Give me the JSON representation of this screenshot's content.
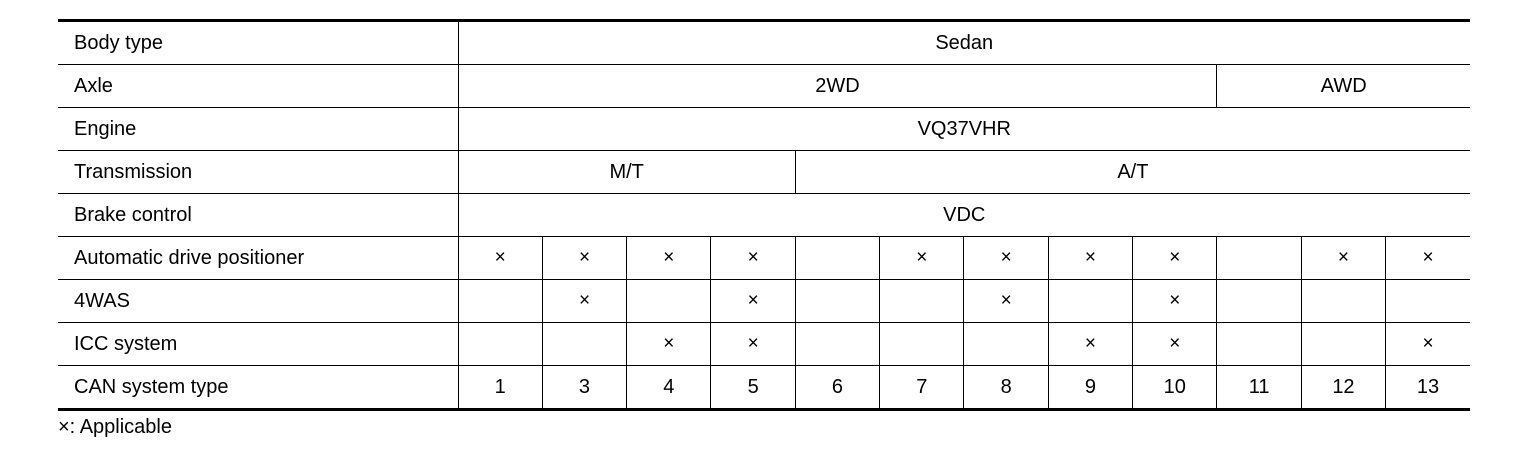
{
  "table": {
    "rows": [
      {
        "label": "Body type",
        "cells": [
          {
            "text": "Sedan",
            "span": 12
          }
        ]
      },
      {
        "label": "Axle",
        "cells": [
          {
            "text": "2WD",
            "span": 9
          },
          {
            "text": "AWD",
            "span": 3
          }
        ]
      },
      {
        "label": "Engine",
        "cells": [
          {
            "text": "VQ37VHR",
            "span": 12
          }
        ]
      },
      {
        "label": "Transmission",
        "cells": [
          {
            "text": "M/T",
            "span": 4
          },
          {
            "text": "A/T",
            "span": 8
          }
        ]
      },
      {
        "label": "Brake control",
        "cells": [
          {
            "text": "VDC",
            "span": 12
          }
        ]
      },
      {
        "label": "Automatic drive positioner",
        "cells": [
          "×",
          "×",
          "×",
          "×",
          "",
          "×",
          "×",
          "×",
          "×",
          "",
          "×",
          "×"
        ]
      },
      {
        "label": "4WAS",
        "cells": [
          "",
          "×",
          "",
          "×",
          "",
          "",
          "×",
          "",
          "×",
          "",
          "",
          ""
        ]
      },
      {
        "label": "ICC system",
        "cells": [
          "",
          "",
          "×",
          "×",
          "",
          "",
          "",
          "×",
          "×",
          "",
          "",
          "×"
        ]
      },
      {
        "label": "CAN system type",
        "cells": [
          "1",
          "3",
          "4",
          "5",
          "6",
          "7",
          "8",
          "9",
          "10",
          "11",
          "12",
          "13"
        ]
      }
    ]
  },
  "footnote": "×: Applicable"
}
